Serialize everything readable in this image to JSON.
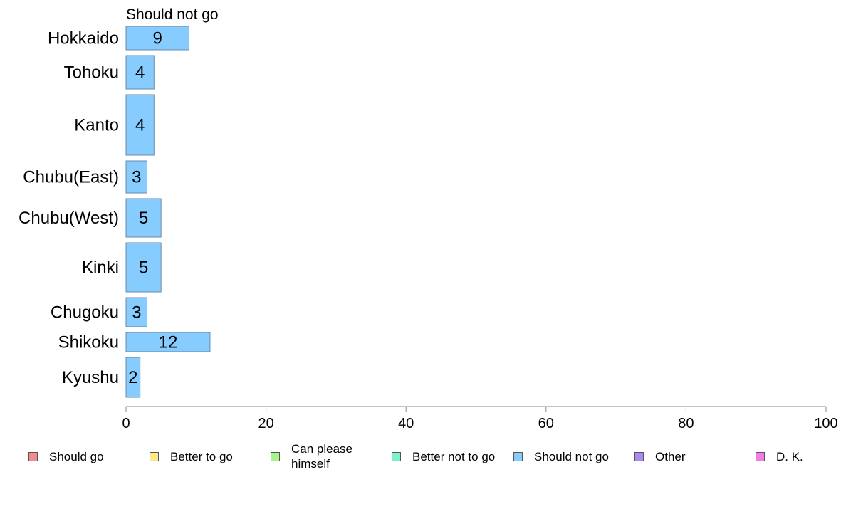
{
  "chart_data": {
    "type": "bar",
    "orientation": "horizontal",
    "title": "Should not go",
    "categories": [
      "Hokkaido",
      "Tohoku",
      "Kanto",
      "Chubu(East)",
      "Chubu(West)",
      "Kinki",
      "Chugoku",
      "Shikoku",
      "Kyushu"
    ],
    "series": [
      {
        "name": "Should not go",
        "values": [
          9,
          4,
          4,
          3,
          5,
          5,
          3,
          12,
          2
        ],
        "color": "#87CCFF"
      }
    ],
    "xlim": [
      0,
      100
    ],
    "xticks": [
      0,
      20,
      40,
      60,
      80,
      100
    ],
    "grid": false,
    "legend_position": "bottom",
    "legend": [
      {
        "label": "Should go",
        "color": "#F28B8B"
      },
      {
        "label": "Better to go",
        "color": "#FCE98A"
      },
      {
        "label": "Can please himself",
        "color": "#A6F58A"
      },
      {
        "label": "Better not to go",
        "color": "#7DF2C8"
      },
      {
        "label": "Should not go",
        "color": "#87CCFF"
      },
      {
        "label": "Other",
        "color": "#A98AF2"
      },
      {
        "label": "D. K.",
        "color": "#F27DE6"
      }
    ]
  }
}
